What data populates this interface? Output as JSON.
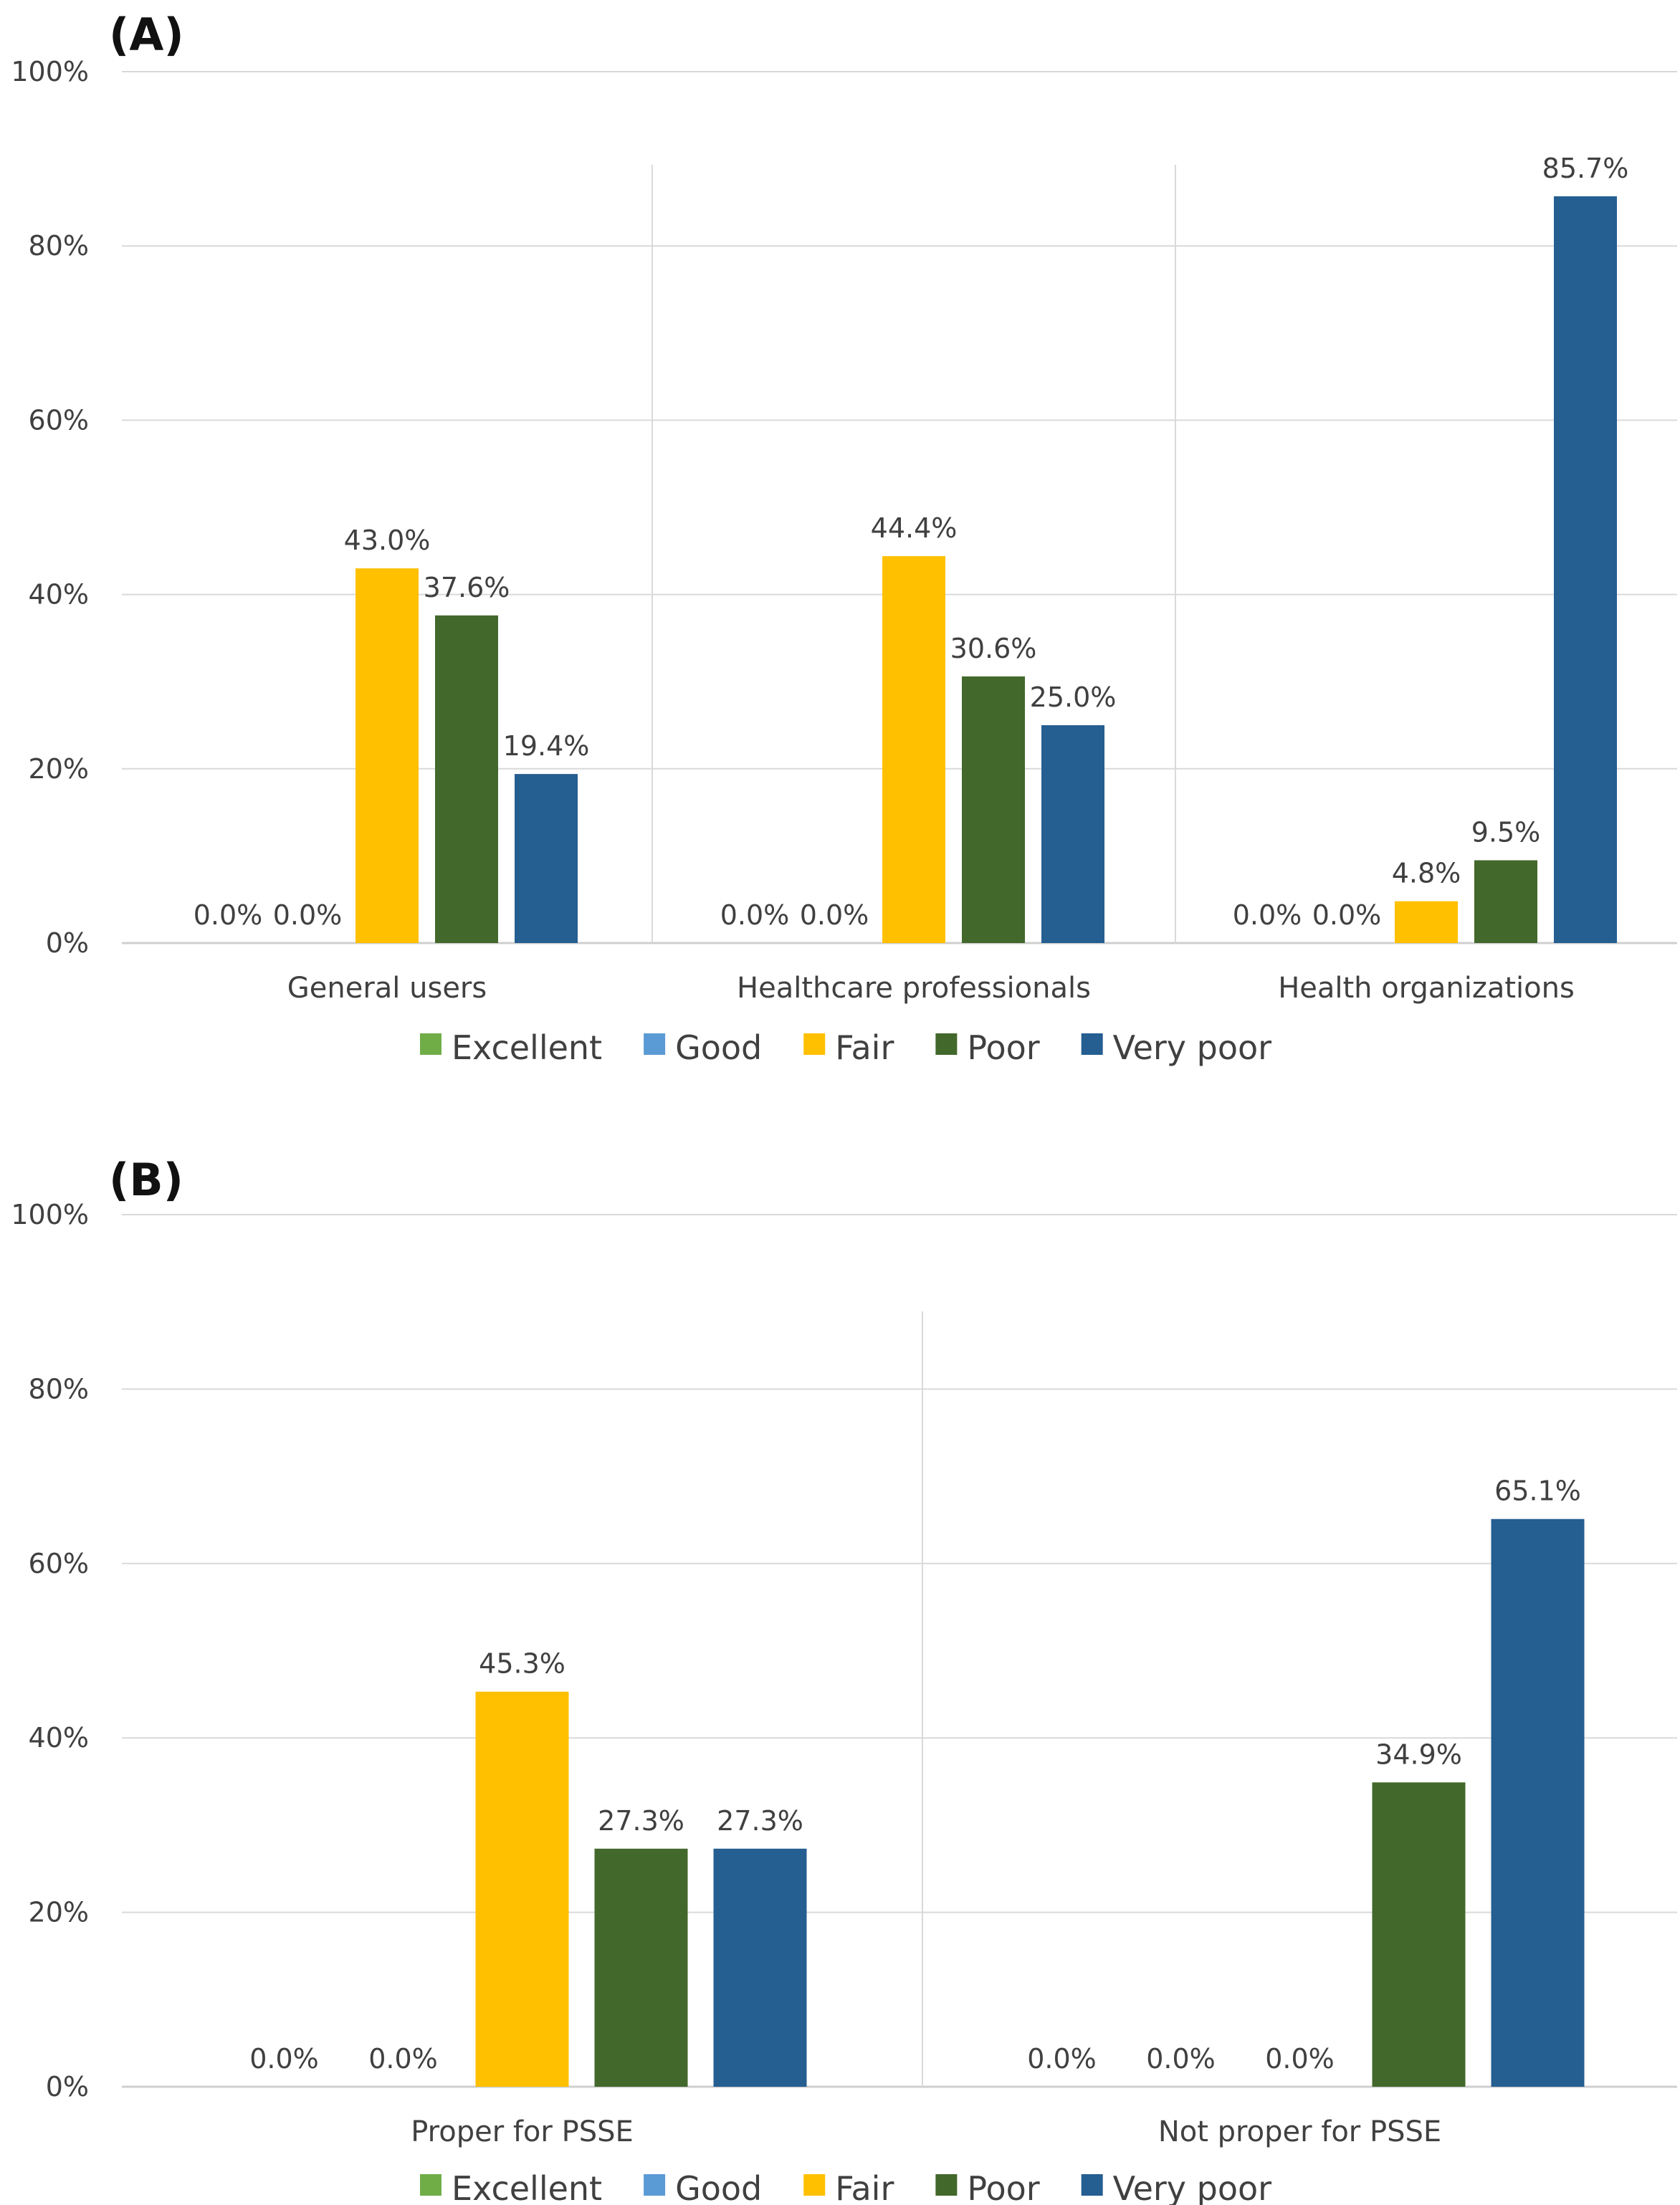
{
  "chart_data": [
    {
      "type": "bar",
      "panel_label": "(A)",
      "y_ticks": [
        "0%",
        "20%",
        "40%",
        "60%",
        "80%",
        "100%"
      ],
      "ylim": [
        0,
        100
      ],
      "grid": true,
      "categories": [
        "General users",
        "Healthcare professionals",
        "Health organizations"
      ],
      "series": [
        {
          "name": "Excellent",
          "color": "#70AD47",
          "values": [
            0.0,
            0.0,
            0.0
          ],
          "labels": [
            "0.0%",
            "0.0%",
            "0.0%"
          ]
        },
        {
          "name": "Good",
          "color": "#5B9BD5",
          "values": [
            0.0,
            0.0,
            0.0
          ],
          "labels": [
            "0.0%",
            "0.0%",
            "0.0%"
          ]
        },
        {
          "name": "Fair",
          "color": "#FFC000",
          "values": [
            43.0,
            44.4,
            4.8
          ],
          "labels": [
            "43.0%",
            "44.4%",
            "4.8%"
          ]
        },
        {
          "name": "Poor",
          "color": "#43682B",
          "values": [
            37.6,
            30.6,
            9.5
          ],
          "labels": [
            "37.6%",
            "30.6%",
            "9.5%"
          ]
        },
        {
          "name": "Very poor",
          "color": "#255E91",
          "values": [
            19.4,
            25.0,
            85.7
          ],
          "labels": [
            "19.4%",
            "25.0%",
            "85.7%"
          ]
        }
      ],
      "legend": {
        "position": "bottom",
        "entries": [
          "Excellent",
          "Good",
          "Fair",
          "Poor",
          "Very poor"
        ]
      }
    },
    {
      "type": "bar",
      "panel_label": "(B)",
      "y_ticks": [
        "0%",
        "20%",
        "40%",
        "60%",
        "80%",
        "100%"
      ],
      "ylim": [
        0,
        100
      ],
      "grid": true,
      "categories": [
        "Proper for PSSE",
        "Not proper for PSSE"
      ],
      "series": [
        {
          "name": "Excellent",
          "color": "#70AD47",
          "values": [
            0.0,
            0.0
          ],
          "labels": [
            "0.0%",
            "0.0%"
          ]
        },
        {
          "name": "Good",
          "color": "#5B9BD5",
          "values": [
            0.0,
            0.0
          ],
          "labels": [
            "0.0%",
            "0.0%"
          ]
        },
        {
          "name": "Fair",
          "color": "#FFC000",
          "values": [
            45.3,
            0.0
          ],
          "labels": [
            "45.3%",
            "0.0%"
          ]
        },
        {
          "name": "Poor",
          "color": "#43682B",
          "values": [
            27.3,
            34.9
          ],
          "labels": [
            "27.3%",
            "34.9%"
          ]
        },
        {
          "name": "Very poor",
          "color": "#255E91",
          "values": [
            27.3,
            65.1
          ],
          "labels": [
            "27.3%",
            "65.1%"
          ]
        }
      ],
      "legend": {
        "position": "bottom",
        "entries": [
          "Excellent",
          "Good",
          "Fair",
          "Poor",
          "Very poor"
        ]
      }
    }
  ]
}
